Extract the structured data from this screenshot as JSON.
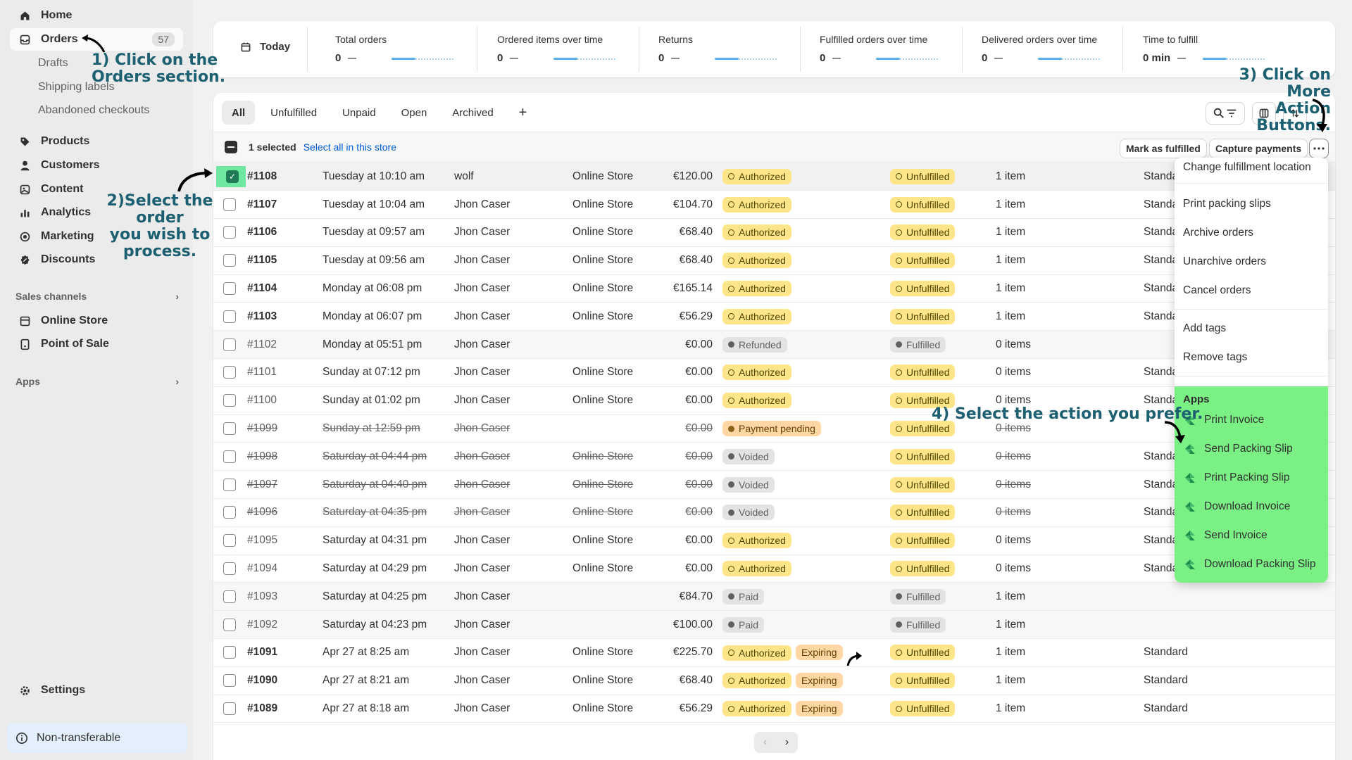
{
  "sidebar": {
    "items": [
      {
        "label": "Home",
        "icon": "home-icon"
      },
      {
        "label": "Orders",
        "icon": "orders-icon",
        "count": "57"
      },
      {
        "label": "Products",
        "icon": "tag-icon"
      },
      {
        "label": "Customers",
        "icon": "person-icon"
      },
      {
        "label": "Content",
        "icon": "content-icon"
      },
      {
        "label": "Analytics",
        "icon": "bar-chart-icon"
      },
      {
        "label": "Marketing",
        "icon": "target-icon"
      },
      {
        "label": "Discounts",
        "icon": "discount-icon"
      }
    ],
    "sub_items": [
      "Drafts",
      "Shipping labels",
      "Abandoned checkouts"
    ],
    "sales_channels": {
      "title": "Sales channels",
      "items": [
        "Online Store",
        "Point of Sale"
      ]
    },
    "apps_title": "Apps",
    "settings": "Settings",
    "non_transferable": "Non-transferable"
  },
  "stats": {
    "today": "Today",
    "items": [
      {
        "label": "Total orders",
        "value": "0"
      },
      {
        "label": "Ordered items over time",
        "value": "0"
      },
      {
        "label": "Returns",
        "value": "0"
      },
      {
        "label": "Fulfilled orders over time",
        "value": "0"
      },
      {
        "label": "Delivered orders over time",
        "value": "0"
      },
      {
        "label": "Time to fulfill",
        "value": "0 min"
      }
    ]
  },
  "tabs": [
    "All",
    "Unfulfilled",
    "Unpaid",
    "Open",
    "Archived",
    "+"
  ],
  "selection": {
    "count_text": "1 selected",
    "select_all": "Select all in this store",
    "mark_fulfilled": "Mark as fulfilled",
    "capture_payments": "Capture payments"
  },
  "orders": [
    {
      "num": "#1108",
      "date": "Tuesday at 10:10 am",
      "customer": "wolf",
      "channel": "Online Store",
      "total": "€120.00",
      "payment": "Authorized",
      "fulfillment": "Unfulfilled",
      "items": "1 item",
      "delivery": "Standa",
      "selected": true
    },
    {
      "num": "#1107",
      "date": "Tuesday at 10:04 am",
      "customer": "Jhon Caser",
      "channel": "Online Store",
      "total": "€104.70",
      "payment": "Authorized",
      "fulfillment": "Unfulfilled",
      "items": "1 item",
      "delivery": "Standa"
    },
    {
      "num": "#1106",
      "date": "Tuesday at 09:57 am",
      "customer": "Jhon Caser",
      "channel": "Online Store",
      "total": "€68.40",
      "payment": "Authorized",
      "fulfillment": "Unfulfilled",
      "items": "1 item",
      "delivery": "Standa"
    },
    {
      "num": "#1105",
      "date": "Tuesday at 09:56 am",
      "customer": "Jhon Caser",
      "channel": "Online Store",
      "total": "€68.40",
      "payment": "Authorized",
      "fulfillment": "Unfulfilled",
      "items": "1 item",
      "delivery": "Standa"
    },
    {
      "num": "#1104",
      "date": "Monday at 06:08 pm",
      "customer": "Jhon Caser",
      "channel": "Online Store",
      "total": "€165.14",
      "payment": "Authorized",
      "fulfillment": "Unfulfilled",
      "items": "1 item",
      "delivery": "Standa"
    },
    {
      "num": "#1103",
      "date": "Monday at 06:07 pm",
      "customer": "Jhon Caser",
      "channel": "Online Store",
      "total": "€56.29",
      "payment": "Authorized",
      "fulfillment": "Unfulfilled",
      "items": "1 item",
      "delivery": "Standa"
    },
    {
      "num": "#1102",
      "date": "Monday at 05:51 pm",
      "customer": "Jhon Caser",
      "channel": "",
      "total": "€0.00",
      "payment": "Refunded",
      "fulfillment": "Fulfilled",
      "items": "0 items",
      "delivery": "",
      "style": "greyed"
    },
    {
      "num": "#1101",
      "date": "Sunday at 07:12 pm",
      "customer": "Jhon Caser",
      "channel": "Online Store",
      "total": "€0.00",
      "payment": "Authorized",
      "fulfillment": "Unfulfilled",
      "items": "0 items",
      "delivery": "Standa",
      "style": "lite"
    },
    {
      "num": "#1100",
      "date": "Sunday at 01:02 pm",
      "customer": "Jhon Caser",
      "channel": "Online Store",
      "total": "€0.00",
      "payment": "Authorized",
      "fulfillment": "Unfulfilled",
      "items": "0 items",
      "delivery": "Standa",
      "style": "lite"
    },
    {
      "num": "#1099",
      "date": "Sunday at 12:59 pm",
      "customer": "Jhon Caser",
      "channel": "",
      "total": "€0.00",
      "payment": "Payment pending",
      "fulfillment": "Unfulfilled",
      "items": "0 items",
      "delivery": "",
      "style": "strike"
    },
    {
      "num": "#1098",
      "date": "Saturday at 04:44 pm",
      "customer": "Jhon Caser",
      "channel": "Online Store",
      "total": "€0.00",
      "payment": "Voided",
      "fulfillment": "Unfulfilled",
      "items": "0 items",
      "delivery": "Standa",
      "style": "strike"
    },
    {
      "num": "#1097",
      "date": "Saturday at 04:40 pm",
      "customer": "Jhon Caser",
      "channel": "Online Store",
      "total": "€0.00",
      "payment": "Voided",
      "fulfillment": "Unfulfilled",
      "items": "0 items",
      "delivery": "Standa",
      "style": "strike"
    },
    {
      "num": "#1096",
      "date": "Saturday at 04:35 pm",
      "customer": "Jhon Caser",
      "channel": "Online Store",
      "total": "€0.00",
      "payment": "Voided",
      "fulfillment": "Unfulfilled",
      "items": "0 items",
      "delivery": "Standa",
      "style": "strike"
    },
    {
      "num": "#1095",
      "date": "Saturday at 04:31 pm",
      "customer": "Jhon Caser",
      "channel": "Online Store",
      "total": "€0.00",
      "payment": "Authorized",
      "fulfillment": "Unfulfilled",
      "items": "0 items",
      "delivery": "Standa",
      "style": "lite"
    },
    {
      "num": "#1094",
      "date": "Saturday at 04:29 pm",
      "customer": "Jhon Caser",
      "channel": "Online Store",
      "total": "€0.00",
      "payment": "Authorized",
      "fulfillment": "Unfulfilled",
      "items": "0 items",
      "delivery": "Standa",
      "style": "lite"
    },
    {
      "num": "#1093",
      "date": "Saturday at 04:25 pm",
      "customer": "Jhon Caser",
      "channel": "",
      "total": "€84.70",
      "payment": "Paid",
      "fulfillment": "Fulfilled",
      "items": "1 item",
      "delivery": "",
      "style": "greyed"
    },
    {
      "num": "#1092",
      "date": "Saturday at 04:23 pm",
      "customer": "Jhon Caser",
      "channel": "",
      "total": "€100.00",
      "payment": "Paid",
      "fulfillment": "Fulfilled",
      "items": "1 item",
      "delivery": "",
      "style": "greyed"
    },
    {
      "num": "#1091",
      "date": "Apr 27 at 8:25 am",
      "customer": "Jhon Caser",
      "channel": "Online Store",
      "total": "€225.70",
      "payment": "Authorized",
      "extra": "Expiring",
      "fulfillment": "Unfulfilled",
      "items": "1 item",
      "delivery": "Standard"
    },
    {
      "num": "#1090",
      "date": "Apr 27 at 8:21 am",
      "customer": "Jhon Caser",
      "channel": "Online Store",
      "total": "€68.40",
      "payment": "Authorized",
      "extra": "Expiring",
      "fulfillment": "Unfulfilled",
      "items": "1 item",
      "delivery": "Standard"
    },
    {
      "num": "#1089",
      "date": "Apr 27 at 8:18 am",
      "customer": "Jhon Caser",
      "channel": "Online Store",
      "total": "€56.29",
      "payment": "Authorized",
      "extra": "Expiring",
      "fulfillment": "Unfulfilled",
      "items": "1 item",
      "delivery": "Standard"
    }
  ],
  "dropdown": {
    "items": [
      "Change fulfillment location",
      "Print packing slips",
      "Archive orders",
      "Unarchive orders",
      "Cancel orders",
      "Add tags",
      "Remove tags"
    ],
    "apps_title": "Apps",
    "apps": [
      "Print Invoice",
      "Send Packing Slip",
      "Print Packing Slip",
      "Download Invoice",
      "Send Invoice",
      "Download Packing Slip"
    ]
  },
  "annotations": {
    "step1": "1) Click on the\nOrders section.",
    "step2": "2)Select the order\nyou wish to process.",
    "step3": "3) Click on More\nAction Buttons.",
    "step4": "4) Select the action you prefer."
  },
  "colors": {
    "annotation": "#1d6072",
    "apps_highlight": "#7bf084",
    "checkbox_highlight": "#6ee7a0",
    "link": "#005bd3"
  }
}
